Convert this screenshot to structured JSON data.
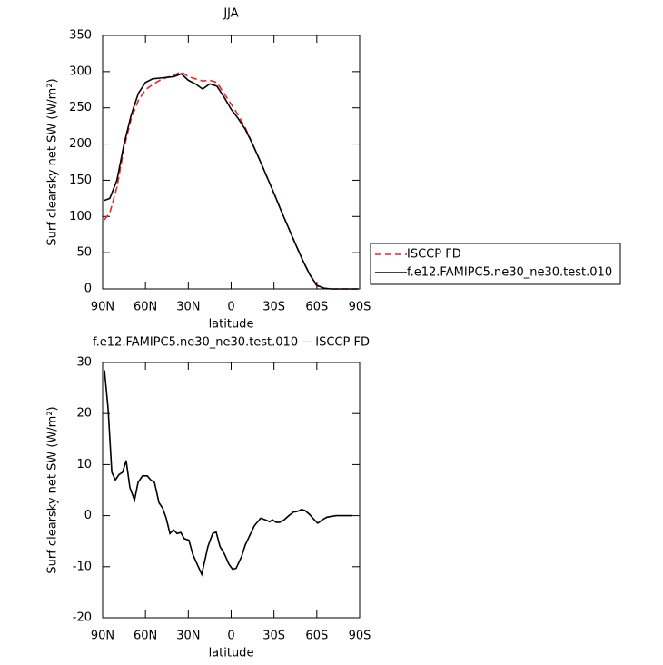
{
  "chart_data": [
    {
      "type": "line",
      "title": "JJA",
      "xlabel": "latitude",
      "ylabel": "Surf clearsky net SW (W/m²)",
      "x": [
        89,
        85,
        80,
        75,
        70,
        65,
        60,
        55,
        50,
        45,
        40,
        35,
        30,
        25,
        20,
        15,
        10,
        5,
        0,
        -5,
        -10,
        -15,
        -20,
        -25,
        -30,
        -35,
        -40,
        -45,
        -50,
        -55,
        -60,
        -65,
        -70,
        -75,
        -80,
        -85,
        -89
      ],
      "series": [
        {
          "name": "ISCCP FD",
          "color": "#e8262b",
          "dashed": true,
          "values": [
            95,
            105,
            140,
            195,
            235,
            260,
            275,
            282,
            288,
            292,
            295,
            300,
            293,
            290,
            287,
            288,
            285,
            270,
            255,
            240,
            222,
            200,
            178,
            155,
            132,
            108,
            85,
            62,
            40,
            20,
            4,
            0.5,
            0,
            0,
            0,
            0,
            0
          ]
        },
        {
          "name": "f.e12.FAMIPC5.ne30_ne30.test.010",
          "color": "#000000",
          "dashed": false,
          "values": [
            122,
            125,
            150,
            200,
            240,
            270,
            285,
            290,
            291,
            292,
            293,
            297,
            288,
            283,
            276,
            283,
            280,
            265,
            248,
            235,
            220,
            200,
            178,
            155,
            132,
            108,
            85,
            62,
            40,
            20,
            5,
            1,
            0,
            0,
            0,
            0,
            0
          ]
        }
      ],
      "xlim": [
        90,
        -90
      ],
      "xticks": [
        {
          "value": 90,
          "label": "90N"
        },
        {
          "value": 60,
          "label": "60N"
        },
        {
          "value": 30,
          "label": "30N"
        },
        0,
        {
          "value": -30,
          "label": "30S"
        },
        {
          "value": -60,
          "label": "60S"
        },
        {
          "value": -90,
          "label": "90S"
        }
      ],
      "ylim": [
        0,
        350
      ],
      "yticks": [
        0,
        50,
        100,
        150,
        200,
        250,
        300,
        350
      ],
      "legend": "right"
    },
    {
      "type": "line",
      "title": "f.e12.FAMIPC5.ne30_ne30.test.010 − ISCCP FD",
      "xlabel": "latitude",
      "ylabel": "Surf clearsky net SW (W/m²)",
      "x": [
        88.7,
        86.2,
        83.6,
        81.1,
        78.6,
        76.0,
        73.5,
        70.9,
        67.7,
        65.2,
        62.0,
        58.8,
        56.3,
        53.7,
        50.5,
        48.0,
        45.5,
        42.9,
        40.4,
        37.8,
        35.3,
        32.8,
        29.6,
        27.0,
        20.6,
        16.2,
        13.0,
        10.5,
        7.9,
        4.7,
        1.6,
        -1.0,
        -3.5,
        -7.3,
        -9.8,
        -16.2,
        -20.7,
        -23.8,
        -27.0,
        -28.9,
        -31.5,
        -34.0,
        -37.2,
        -40.4,
        -43.6,
        -46.1,
        -49.3,
        -51.8,
        -55.0,
        -58.2,
        -60.7,
        -63.9,
        -67.1,
        -73.5,
        -79.9,
        -84.9
      ],
      "values": [
        28.5,
        21,
        8.5,
        7,
        8,
        8.5,
        10.8,
        5.5,
        3,
        6.5,
        7.8,
        7.8,
        7,
        6.5,
        2.5,
        1.5,
        -0.5,
        -3.5,
        -2.8,
        -3.5,
        -3.3,
        -4.5,
        -4.8,
        -7.5,
        -11.5,
        -6,
        -3.5,
        -3.2,
        -6,
        -7.5,
        -9.5,
        -10.5,
        -10.3,
        -8,
        -5.8,
        -2,
        -0.5,
        -0.8,
        -1.2,
        -0.8,
        -1.3,
        -1.3,
        -0.8,
        0,
        0.7,
        0.8,
        1.2,
        1,
        0.2,
        -0.8,
        -1.5,
        -0.8,
        -0.3,
        0,
        0,
        0
      ],
      "color": "#000000",
      "xlim": [
        90,
        -90
      ],
      "xticks": [
        {
          "value": 90,
          "label": "90N"
        },
        {
          "value": 60,
          "label": "60N"
        },
        {
          "value": 30,
          "label": "30N"
        },
        0,
        {
          "value": -30,
          "label": "30S"
        },
        {
          "value": -60,
          "label": "60S"
        },
        {
          "value": -90,
          "label": "90S"
        }
      ],
      "ylim": [
        -20,
        30
      ],
      "yticks": [
        -20,
        -10,
        0,
        10,
        20,
        30
      ]
    }
  ]
}
